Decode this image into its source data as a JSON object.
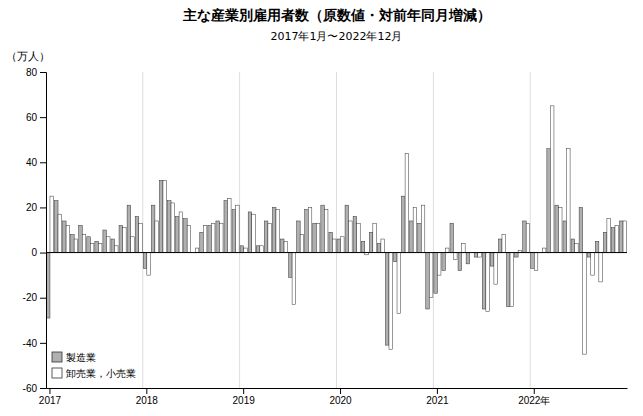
{
  "chart_data": {
    "type": "bar",
    "title": "主な産業別雇用者数（原数値・対前年同月増減）",
    "subtitle": "2017年1月〜2022年12月",
    "ylabel": "（万人）",
    "categories": [
      "2017",
      null,
      null,
      null,
      null,
      null,
      null,
      null,
      null,
      null,
      null,
      null,
      "2018",
      null,
      null,
      null,
      null,
      null,
      null,
      null,
      null,
      null,
      null,
      null,
      "2019",
      null,
      null,
      null,
      null,
      null,
      null,
      null,
      null,
      null,
      null,
      null,
      "2020",
      null,
      null,
      null,
      null,
      null,
      null,
      null,
      null,
      null,
      null,
      null,
      "2021",
      null,
      null,
      null,
      null,
      null,
      null,
      null,
      null,
      null,
      null,
      null,
      "2022年",
      null,
      null,
      null,
      null,
      null,
      null,
      null,
      null,
      null,
      null,
      null
    ],
    "series": [
      {
        "name": "製造業",
        "color": "#b0b0b0",
        "values": [
          -29,
          23,
          14,
          8,
          12,
          7,
          5,
          10,
          6,
          12,
          21,
          16,
          -7,
          21,
          32,
          23,
          16,
          15,
          0,
          9,
          12,
          14,
          23,
          19,
          3,
          18,
          3,
          14,
          20,
          6,
          -11,
          14,
          19,
          13,
          21,
          9,
          6,
          21,
          16,
          5,
          9,
          4,
          -41,
          -4,
          25,
          14,
          13,
          -25,
          -18,
          -8,
          13,
          -8,
          -5,
          -2,
          -25,
          -6,
          6,
          -24,
          -2,
          14,
          -7,
          0,
          46,
          21,
          14,
          6,
          20,
          -2,
          5,
          9,
          11,
          14
        ]
      },
      {
        "name": "卸売業，小売業",
        "color": "#ffffff",
        "values": [
          25,
          17,
          12,
          6,
          8,
          4,
          4,
          7,
          3,
          11,
          7,
          13,
          -10,
          14,
          32,
          22,
          18,
          12,
          2,
          12,
          13,
          13,
          24,
          21,
          2,
          17,
          3,
          13,
          19,
          5,
          -23,
          8,
          20,
          13,
          19,
          6,
          7,
          14,
          13,
          -1,
          13,
          6,
          -43,
          -27,
          44,
          20,
          21,
          -20,
          -10,
          2,
          -3,
          4,
          0,
          -2,
          -26,
          -14,
          8,
          -24,
          1,
          13,
          -8,
          2,
          65,
          20,
          46,
          4,
          -45,
          -10,
          -13,
          15,
          12,
          14
        ]
      }
    ],
    "ylim": [
      -60,
      80
    ],
    "yticks": [
      -60,
      -40,
      -20,
      0,
      20,
      40,
      60,
      80
    ],
    "grid": true,
    "legend": "lower left"
  }
}
